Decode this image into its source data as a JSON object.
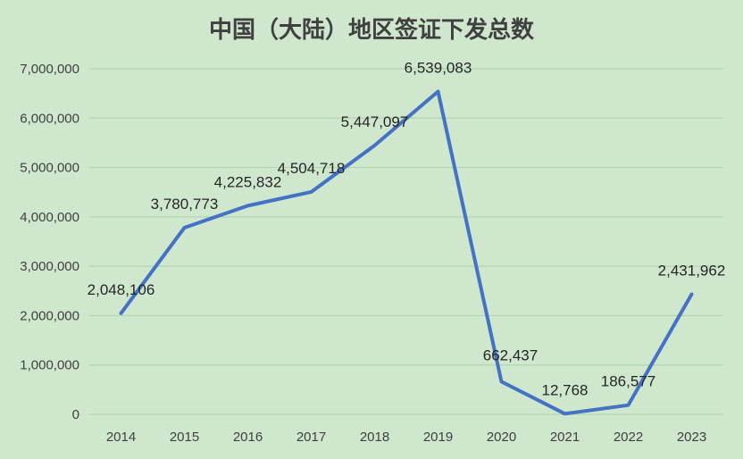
{
  "chart_data": {
    "type": "line",
    "title": "中国（大陆）地区签证下发总数",
    "categories": [
      "2014",
      "2015",
      "2016",
      "2017",
      "2018",
      "2019",
      "2020",
      "2021",
      "2022",
      "2023"
    ],
    "series": [
      {
        "values": [
          2048106,
          3780773,
          4225832,
          4504718,
          5447097,
          6539083,
          662437,
          12768,
          186577,
          2431962
        ],
        "labels": [
          "2,048,106",
          "3,780,773",
          "4,225,832",
          "4,504,718",
          "5,447,097",
          "6,539,083",
          "662,437",
          "12,768",
          "186,577",
          "2,431,962"
        ],
        "color": "#4472c4"
      }
    ],
    "ylim": [
      0,
      7000000
    ],
    "y_ticks": [
      0,
      1000000,
      2000000,
      3000000,
      4000000,
      5000000,
      6000000,
      7000000
    ],
    "y_tick_labels": [
      "0",
      "1,000,000",
      "2,000,000",
      "3,000,000",
      "4,000,000",
      "5,000,000",
      "6,000,000",
      "7,000,000"
    ],
    "grid": true,
    "legend": "none",
    "colors": {
      "background": "#cfe7cd",
      "gridline": "#b2d6ae",
      "line": "#4472c4",
      "text": "#404040"
    }
  }
}
